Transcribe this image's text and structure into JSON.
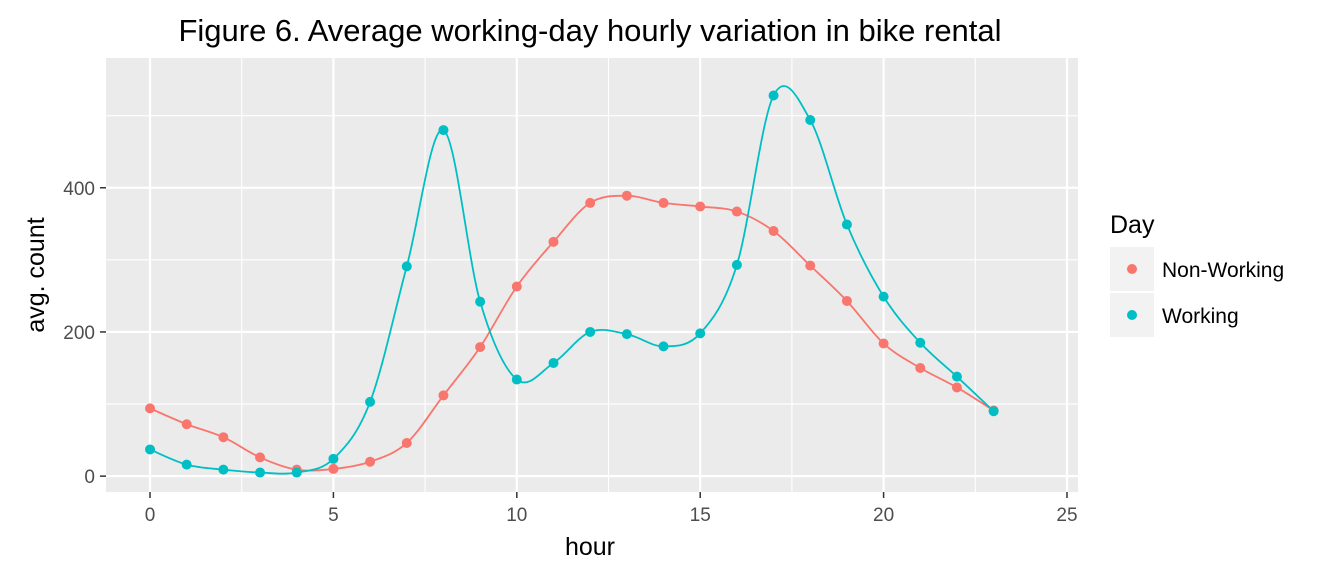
{
  "chart_data": {
    "type": "line",
    "title": "Figure 6. Average working-day hourly variation in bike rental",
    "xlabel": "hour",
    "ylabel": "avg. count",
    "xlim": [
      -1.2,
      25.3
    ],
    "ylim": [
      -22,
      580
    ],
    "x_ticks": [
      0,
      5,
      10,
      15,
      20,
      25
    ],
    "y_ticks": [
      0,
      200,
      400
    ],
    "grid": true,
    "smoothed": true,
    "legend": {
      "title": "Day",
      "position": "right"
    },
    "x": [
      0,
      1,
      2,
      3,
      4,
      5,
      6,
      7,
      8,
      9,
      10,
      11,
      12,
      13,
      14,
      15,
      16,
      17,
      18,
      19,
      20,
      21,
      22,
      23
    ],
    "series": [
      {
        "name": "Non-Working",
        "color": "#F8766D",
        "values": [
          94,
          72,
          54,
          26,
          9,
          10,
          20,
          46,
          112,
          179,
          263,
          325,
          379,
          389,
          379,
          374,
          367,
          340,
          292,
          243,
          184,
          150,
          123,
          91
        ]
      },
      {
        "name": "Working",
        "color": "#00BFC4",
        "values": [
          37,
          16,
          9,
          5,
          5,
          24,
          103,
          291,
          480,
          242,
          134,
          157,
          200,
          197,
          180,
          198,
          293,
          528,
          494,
          349,
          249,
          185,
          138,
          90
        ]
      }
    ]
  }
}
